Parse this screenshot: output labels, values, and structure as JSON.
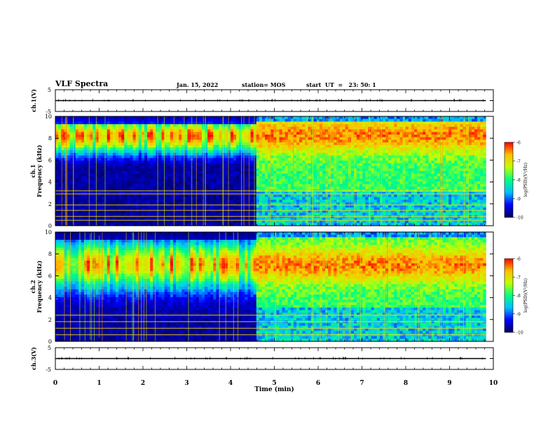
{
  "header": {
    "title": "VLF Spectra",
    "date": "Jan. 15, 2022",
    "station": "station= MOS",
    "start": "start  UT  =   23: 50: 1"
  },
  "chart_data": [
    {
      "type": "line",
      "panel": "ch1-waveform",
      "ylabel": "ch.1(V)",
      "ylim": [
        -5,
        5
      ],
      "yticks": [
        "5",
        "-5"
      ],
      "x_range_min": [
        0,
        9.83
      ],
      "baseline_value": 0
    },
    {
      "type": "heatmap",
      "panel": "ch1-spectrogram",
      "ylabel": "ch.1\nFrequency (kHz)",
      "ylabel_line1": "ch.1",
      "ylabel_line2": "Frequency (kHz)",
      "ylim": [
        0,
        10
      ],
      "yticks": [
        "0",
        "2",
        "4",
        "6",
        "8",
        "10"
      ],
      "xlim": [
        0,
        10
      ],
      "data_end_min": 9.83,
      "regime_change_min": 4.6,
      "colorbar": {
        "label": "log(PSD)(V²/Hz)",
        "label_text": "log(PSD)(V",
        "label_sup": "2",
        "label_tail": "/Hz)",
        "range": [
          -10,
          -6
        ],
        "ticks": [
          "-6",
          "-7",
          "-8",
          "-9",
          "-10"
        ]
      }
    },
    {
      "type": "heatmap",
      "panel": "ch2-spectrogram",
      "ylabel_line1": "ch.2",
      "ylabel_line2": "Frequency (kHz)",
      "ylim": [
        0,
        10
      ],
      "yticks": [
        "0",
        "2",
        "4",
        "6",
        "8",
        "10"
      ],
      "xlim": [
        0,
        10
      ],
      "data_end_min": 9.83,
      "regime_change_min": 4.6,
      "colorbar": {
        "label_text": "log(PSD)(V",
        "label_sup": "2",
        "label_tail": "/Hz)",
        "range": [
          -10,
          -6
        ],
        "ticks": [
          "-6",
          "-7",
          "-8",
          "-9",
          "-10"
        ]
      }
    },
    {
      "type": "line",
      "panel": "ch3-waveform",
      "ylabel": "ch.3(V)",
      "ylim": [
        -5,
        5
      ],
      "yticks": [
        "5",
        "-5"
      ],
      "x_range_min": [
        0,
        9.83
      ],
      "baseline_value": 0,
      "xlabel": "Time (min)",
      "xlim": [
        0,
        10
      ],
      "xticks": [
        "0",
        "1",
        "2",
        "3",
        "4",
        "5",
        "6",
        "7",
        "8",
        "9",
        "10"
      ]
    }
  ],
  "colors": {
    "colormap": [
      "#000060",
      "#0000ff",
      "#00c0ff",
      "#00ff80",
      "#c0ff00",
      "#ffc000",
      "#ff0000"
    ],
    "trace": "#000000",
    "axes": "#000000"
  }
}
